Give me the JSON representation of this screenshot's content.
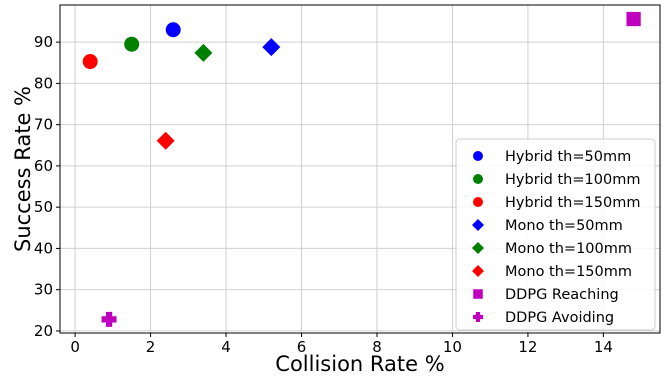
{
  "chart_data": {
    "type": "scatter",
    "title": "",
    "xlabel": "Collision Rate %",
    "ylabel": "Success Rate %",
    "xlim": [
      -0.4,
      15.5
    ],
    "ylim": [
      19.5,
      99
    ],
    "xticks": [
      0,
      2,
      4,
      6,
      8,
      10,
      12,
      14
    ],
    "yticks": [
      20,
      30,
      40,
      50,
      60,
      70,
      80,
      90
    ],
    "grid": true,
    "legend_position": "lower-right",
    "series": [
      {
        "name": "Hybrid th=50mm",
        "marker": "circle",
        "color": "#0000ff",
        "x": [
          2.6
        ],
        "y": [
          93
        ]
      },
      {
        "name": "Hybrid th=100mm",
        "marker": "circle",
        "color": "#008000",
        "x": [
          1.5
        ],
        "y": [
          89.5
        ]
      },
      {
        "name": "Hybrid th=150mm",
        "marker": "circle",
        "color": "#ff0000",
        "x": [
          0.4
        ],
        "y": [
          85.3
        ]
      },
      {
        "name": "Mono th=50mm",
        "marker": "diamond",
        "color": "#0000ff",
        "x": [
          5.2
        ],
        "y": [
          88.8
        ]
      },
      {
        "name": "Mono th=100mm",
        "marker": "diamond",
        "color": "#008000",
        "x": [
          3.4
        ],
        "y": [
          87.4
        ]
      },
      {
        "name": "Mono th=150mm",
        "marker": "diamond",
        "color": "#ff0000",
        "x": [
          2.4
        ],
        "y": [
          66.1
        ]
      },
      {
        "name": "DDPG Reaching",
        "marker": "square",
        "color": "#bf00bf",
        "x": [
          14.8
        ],
        "y": [
          95.6
        ]
      },
      {
        "name": "DDPG Avoiding",
        "marker": "plus",
        "color": "#bf00bf",
        "x": [
          0.9
        ],
        "y": [
          22.8
        ]
      }
    ]
  }
}
